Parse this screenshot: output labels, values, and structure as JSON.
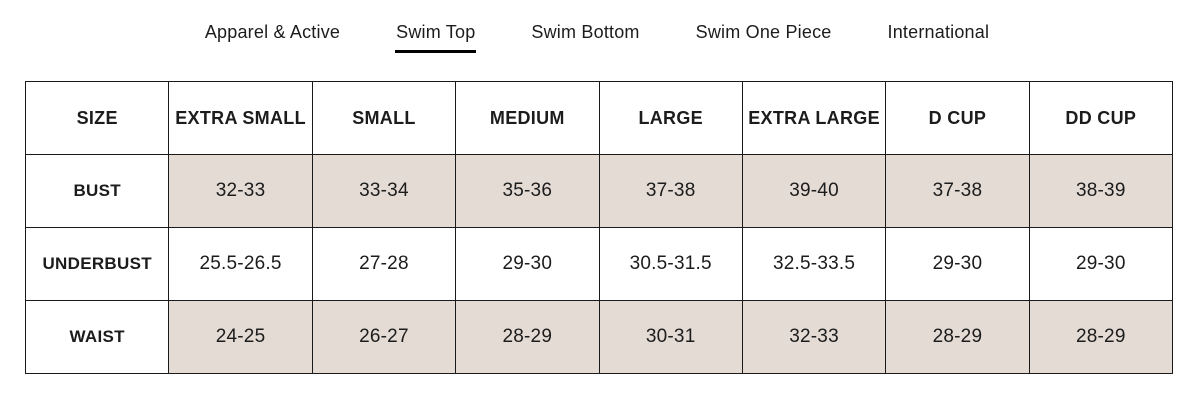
{
  "tabs": [
    {
      "label": "Apparel & Active",
      "active": false
    },
    {
      "label": "Swim Top",
      "active": true
    },
    {
      "label": "Swim Bottom",
      "active": false
    },
    {
      "label": "Swim One Piece",
      "active": false
    },
    {
      "label": "International",
      "active": false
    }
  ],
  "size_chart": {
    "columns": [
      "SIZE",
      "EXTRA SMALL",
      "SMALL",
      "MEDIUM",
      "LARGE",
      "EXTRA LARGE",
      "D CUP",
      "DD CUP"
    ],
    "rows": [
      {
        "label": "BUST",
        "shaded": true,
        "values": [
          "32-33",
          "33-34",
          "35-36",
          "37-38",
          "39-40",
          "37-38",
          "38-39"
        ]
      },
      {
        "label": "UNDERBUST",
        "shaded": false,
        "values": [
          "25.5-26.5",
          "27-28",
          "29-30",
          "30.5-31.5",
          "32.5-33.5",
          "29-30",
          "29-30"
        ]
      },
      {
        "label": "WAIST",
        "shaded": true,
        "values": [
          "24-25",
          "26-27",
          "28-29",
          "30-31",
          "32-33",
          "28-29",
          "28-29"
        ]
      }
    ]
  },
  "colors": {
    "shaded_cell": "#e3dbd4",
    "border": "#1a1a1a",
    "text": "#1c1c1c",
    "active_tab_underline": "#000000"
  }
}
